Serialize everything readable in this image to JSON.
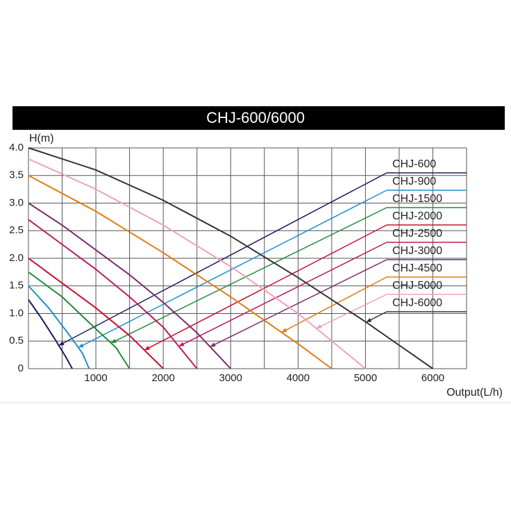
{
  "chart_data": {
    "type": "line",
    "title": "CHJ-600/6000",
    "y_label": "H(m)",
    "x_label": "Output(L/h)",
    "xlim": [
      0,
      6500
    ],
    "xticks": [
      1000,
      2000,
      3000,
      4000,
      5000,
      6000
    ],
    "ylim": [
      0,
      4
    ],
    "yticks": [
      0,
      0.5,
      {
        "value": 1,
        "label": "1.0"
      },
      1.5,
      {
        "value": 2,
        "label": "2.0"
      },
      2.5,
      {
        "value": 3,
        "label": "3.0"
      },
      3.5,
      {
        "value": 4,
        "label": "4.0"
      }
    ],
    "grid": true,
    "series": [
      {
        "name": "CHJ-600",
        "color": "#1b1b5e",
        "x": [
          0,
          200,
          400,
          550,
          650
        ],
        "values": [
          1.25,
          0.9,
          0.52,
          0.22,
          0
        ]
      },
      {
        "name": "CHJ-900",
        "color": "#1f8fd0",
        "x": [
          0,
          300,
          600,
          800,
          900
        ],
        "values": [
          1.5,
          1.1,
          0.62,
          0.28,
          0
        ]
      },
      {
        "name": "CHJ-1500",
        "color": "#1e8c3a",
        "x": [
          0,
          500,
          1000,
          1300,
          1500
        ],
        "values": [
          1.75,
          1.3,
          0.72,
          0.38,
          0
        ]
      },
      {
        "name": "CHJ-2000",
        "color": "#c8102e",
        "x": [
          0,
          500,
          1000,
          1500,
          2000
        ],
        "values": [
          2.0,
          1.55,
          1.1,
          0.6,
          0
        ]
      },
      {
        "name": "CHJ-2500",
        "color": "#c0185a",
        "x": [
          0,
          500,
          1000,
          1500,
          2000,
          2500
        ],
        "values": [
          2.7,
          2.25,
          1.8,
          1.3,
          0.75,
          0
        ]
      },
      {
        "name": "CHJ-3000",
        "color": "#7b2a6b",
        "x": [
          0,
          500,
          1000,
          1500,
          2000,
          2500,
          3000
        ],
        "values": [
          3.0,
          2.6,
          2.15,
          1.7,
          1.2,
          0.65,
          0
        ]
      },
      {
        "name": "CHJ-4500",
        "color": "#e07b12",
        "x": [
          0,
          1000,
          2000,
          3000,
          4000,
          4500
        ],
        "values": [
          3.5,
          2.85,
          2.1,
          1.3,
          0.45,
          0
        ]
      },
      {
        "name": "CHJ-5000",
        "color": "#f0a0b8",
        "x": [
          0,
          1000,
          2000,
          3000,
          4000,
          5000
        ],
        "values": [
          3.8,
          3.25,
          2.6,
          1.85,
          1.0,
          0
        ]
      },
      {
        "name": "CHJ-6000",
        "color": "#333333",
        "x": [
          0,
          1000,
          2000,
          3000,
          4000,
          5000,
          6000
        ],
        "values": [
          4.0,
          3.6,
          3.05,
          2.4,
          1.65,
          0.85,
          0
        ]
      }
    ]
  }
}
